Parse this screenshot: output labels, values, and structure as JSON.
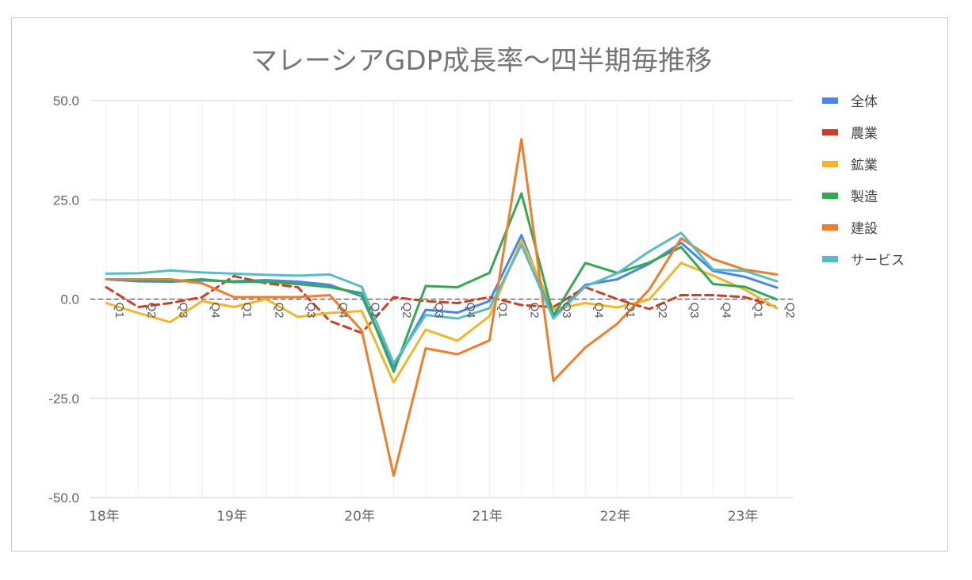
{
  "chart_data": {
    "type": "line",
    "title": "マレーシアGDP成長率〜四半期毎推移",
    "xlabel": "",
    "ylabel": "",
    "ylim": [
      -50,
      50
    ],
    "y_ticks": [
      "50.0",
      "25.0",
      "0.0",
      "-25.0",
      "-50.0"
    ],
    "year_labels": [
      "18年",
      "19年",
      "20年",
      "21年",
      "22年",
      "23年"
    ],
    "quarter_labels": [
      "Q1",
      "Q2",
      "Q3",
      "Q4",
      "Q1",
      "Q2",
      "Q3",
      "Q4",
      "Q1",
      "Q2",
      "Q3",
      "Q4",
      "Q1",
      "Q2",
      "Q3",
      "Q4",
      "Q1",
      "Q2",
      "Q3",
      "Q4",
      "Q1",
      "Q2"
    ],
    "x": [
      "18Q1",
      "18Q2",
      "18Q3",
      "18Q4",
      "19Q1",
      "19Q2",
      "19Q3",
      "19Q4",
      "20Q1",
      "20Q2",
      "20Q3",
      "20Q4",
      "21Q1",
      "21Q2",
      "21Q3",
      "21Q4",
      "22Q1",
      "22Q2",
      "22Q3",
      "22Q4",
      "23Q1",
      "23Q2"
    ],
    "grid": true,
    "legend_position": "right",
    "series": [
      {
        "name": "全体",
        "color": "#4a86e8",
        "values": [
          5.0,
          4.5,
          4.4,
          4.7,
          4.5,
          4.8,
          4.4,
          3.6,
          0.7,
          -17.1,
          -2.7,
          -3.4,
          -0.5,
          16.1,
          -4.5,
          3.6,
          5.0,
          8.9,
          14.2,
          7.1,
          5.6,
          2.9
        ]
      },
      {
        "name": "農業",
        "color": "#cc4125",
        "values": [
          3.0,
          -2.0,
          -1.0,
          0.5,
          5.8,
          4.0,
          3.0,
          -5.5,
          -8.5,
          0.5,
          -0.5,
          -1.0,
          0.5,
          -1.5,
          -2.0,
          3.0,
          0.0,
          -2.5,
          1.0,
          1.0,
          0.5,
          -2.0
        ]
      },
      {
        "name": "鉱業",
        "color": "#f1b52e",
        "values": [
          -1.0,
          -3.5,
          -5.8,
          -0.5,
          -2.0,
          0.0,
          -4.5,
          -3.5,
          -3.0,
          -21.0,
          -7.7,
          -10.5,
          -4.3,
          14.8,
          -2.6,
          -1.0,
          -2.1,
          -0.1,
          9.1,
          5.9,
          2.4,
          -2.3
        ]
      },
      {
        "name": "製造",
        "color": "#34a853",
        "values": [
          5.0,
          4.8,
          4.5,
          5.0,
          4.3,
          4.4,
          3.8,
          3.0,
          1.5,
          -18.3,
          3.3,
          3.0,
          6.6,
          26.6,
          -4.2,
          9.1,
          6.6,
          9.2,
          13.1,
          3.8,
          3.1,
          -0.1
        ]
      },
      {
        "name": "建設",
        "color": "#f07d2c",
        "values": [
          5.0,
          5.0,
          5.0,
          4.0,
          0.5,
          0.5,
          0.5,
          1.0,
          -7.9,
          -44.5,
          -12.4,
          -13.9,
          -10.4,
          40.3,
          -20.6,
          -12.2,
          -6.2,
          2.4,
          15.3,
          10.1,
          7.4,
          6.2
        ]
      },
      {
        "name": "サービス",
        "color": "#56bcc7",
        "values": [
          6.4,
          6.5,
          7.2,
          6.7,
          6.4,
          6.1,
          5.9,
          6.2,
          3.1,
          -16.2,
          -4.0,
          -4.9,
          -2.3,
          13.7,
          -4.9,
          3.2,
          6.5,
          12.0,
          16.7,
          7.4,
          7.1,
          4.5
        ]
      }
    ]
  }
}
